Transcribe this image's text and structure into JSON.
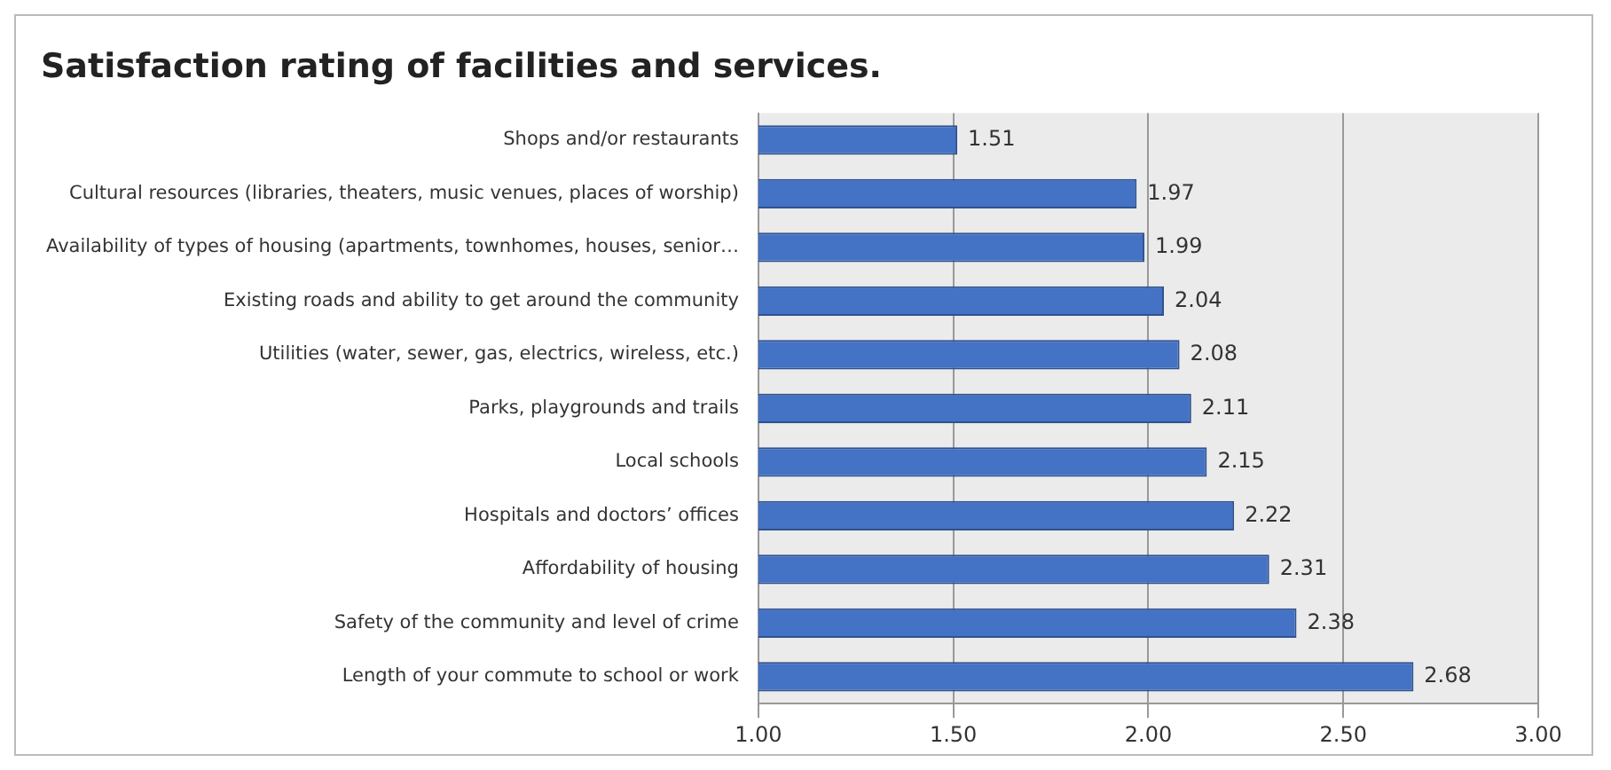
{
  "chart_data": {
    "type": "bar",
    "orientation": "horizontal",
    "title": "Satisfaction rating of facilities and services.",
    "categories": [
      "Shops and/or restaurants",
      "Cultural resources (libraries, theaters, music venues, places of worship)",
      "Availability of types of housing (apartments, townhomes, houses, senior…",
      "Existing roads and ability to get around the community",
      "Utilities (water, sewer, gas, electrics, wireless, etc.)",
      "Parks, playgrounds and trails",
      "Local schools",
      "Hospitals and doctors’ offices",
      "Affordability of housing",
      "Safety of the community and level of crime",
      "Length of your commute to school or work"
    ],
    "values": [
      1.51,
      1.97,
      1.99,
      2.04,
      2.08,
      2.11,
      2.15,
      2.22,
      2.31,
      2.38,
      2.68
    ],
    "color": "#4472c4",
    "xlim": [
      1,
      3
    ],
    "xticks": [
      {
        "value": 1,
        "label": "1.00"
      },
      {
        "value": 1.5,
        "label": "1.50"
      },
      {
        "value": 2,
        "label": "2.00"
      },
      {
        "value": 2.5,
        "label": "2.50"
      },
      {
        "value": 3,
        "label": "3.00"
      }
    ],
    "grid": "x",
    "data_labels": true
  }
}
